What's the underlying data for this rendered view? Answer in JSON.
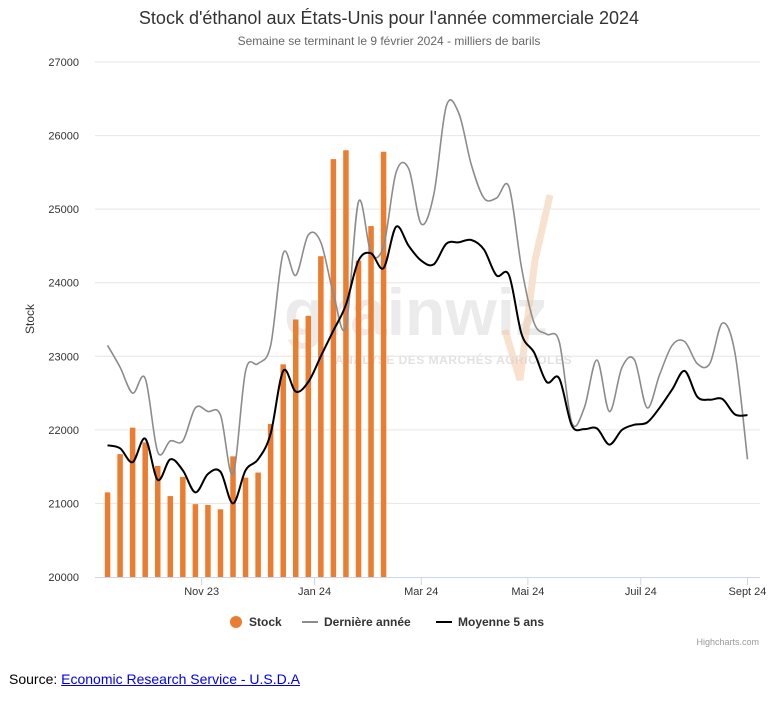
{
  "chart_data": {
    "type": "bar+line",
    "title": "Stock d'éthanol aux États-Unis pour l'année commerciale 2024",
    "subtitle": "Semaine se terminant le 9 février 2024 - milliers de barils",
    "ylabel": "Stock",
    "ylim": [
      20000,
      27000
    ],
    "yticks": [
      "20000",
      "21000",
      "22000",
      "23000",
      "24000",
      "25000",
      "26000",
      "27000"
    ],
    "xticks": [
      {
        "label": "Nov 23",
        "week": 8.5
      },
      {
        "label": "Jan 24",
        "week": 17.5
      },
      {
        "label": "Mar 24",
        "week": 26
      },
      {
        "label": "Mai 24",
        "week": 34.5
      },
      {
        "label": "Juil 24",
        "week": 43.5
      },
      {
        "label": "Sept 24",
        "week": 52
      }
    ],
    "x_range": [
      0,
      53
    ],
    "grid": "horizontal",
    "legend_position": "bottom-center",
    "series": [
      {
        "name": "Stock",
        "type": "bar",
        "color": "#ea7d2f",
        "values": [
          21150,
          21670,
          22030,
          21830,
          21510,
          21100,
          21360,
          20990,
          20980,
          20920,
          21640,
          21350,
          21420,
          22080,
          22890,
          23500,
          23550,
          24360,
          25680,
          25800,
          24300,
          24770,
          25780
        ]
      },
      {
        "name": "Dernière année",
        "type": "line",
        "color": "#8c8c8c",
        "values": [
          23150,
          22850,
          22500,
          22700,
          21700,
          21850,
          21850,
          22300,
          22250,
          22200,
          21400,
          22800,
          22900,
          23150,
          24400,
          24100,
          24650,
          24550,
          23850,
          23400,
          25100,
          24400,
          24500,
          25500,
          25550,
          24800,
          25200,
          26400,
          26300,
          25600,
          25150,
          25150,
          25300,
          24200,
          23450,
          23300,
          23200,
          22100,
          22300,
          22950,
          22250,
          22850,
          22950,
          22300,
          22750,
          23150,
          23200,
          22900,
          22900,
          23450,
          23050,
          21600
        ]
      },
      {
        "name": "Moyenne 5 ans",
        "type": "line",
        "color": "#000000",
        "values": [
          21790,
          21750,
          21560,
          21880,
          21320,
          21600,
          21450,
          21150,
          21400,
          21430,
          21000,
          21450,
          21600,
          21950,
          22800,
          22520,
          22650,
          23000,
          23350,
          23700,
          24300,
          24400,
          24200,
          24760,
          24500,
          24300,
          24250,
          24530,
          24550,
          24580,
          24450,
          24100,
          24100,
          23300,
          23050,
          22650,
          22700,
          22060,
          22010,
          22020,
          21800,
          22000,
          22070,
          22100,
          22300,
          22550,
          22800,
          22450,
          22410,
          22420,
          22210,
          22200
        ]
      }
    ]
  },
  "watermark": {
    "text": "grainwiz",
    "subtext": "ANALYSE DES MARCHÉS AGRICOLES"
  },
  "credits": "Highcharts.com",
  "source": {
    "label": "Source:",
    "link_text": "Economic Research Service - U.S.D.A"
  },
  "colors": {
    "stock": "#ea7d2f",
    "last_year": "#8c8c8c",
    "avg5": "#000000",
    "grid": "#e6e6e6"
  }
}
